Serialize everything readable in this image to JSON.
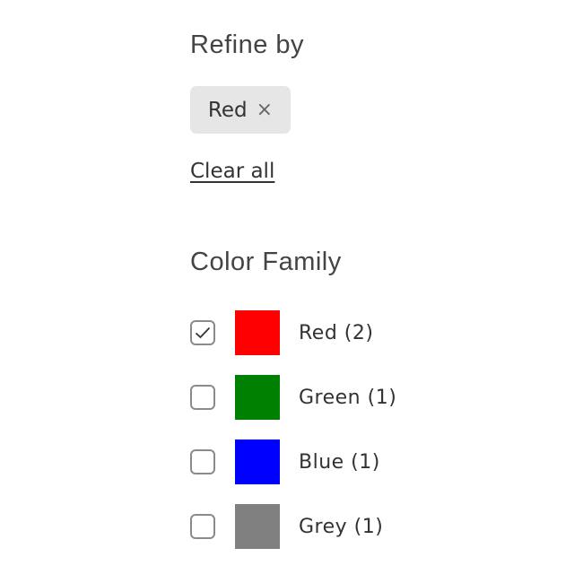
{
  "refine": {
    "title": "Refine by",
    "chip_label": "Red",
    "chip_remove": "×",
    "clear_all": "Clear all"
  },
  "family": {
    "title": "Color Family",
    "items": [
      {
        "label": "Red (2)",
        "color": "#ff0000",
        "checked": true
      },
      {
        "label": "Green (1)",
        "color": "#008000",
        "checked": false
      },
      {
        "label": "Blue (1)",
        "color": "#0000ff",
        "checked": false
      },
      {
        "label": "Grey (1)",
        "color": "#808080",
        "checked": false
      }
    ]
  }
}
